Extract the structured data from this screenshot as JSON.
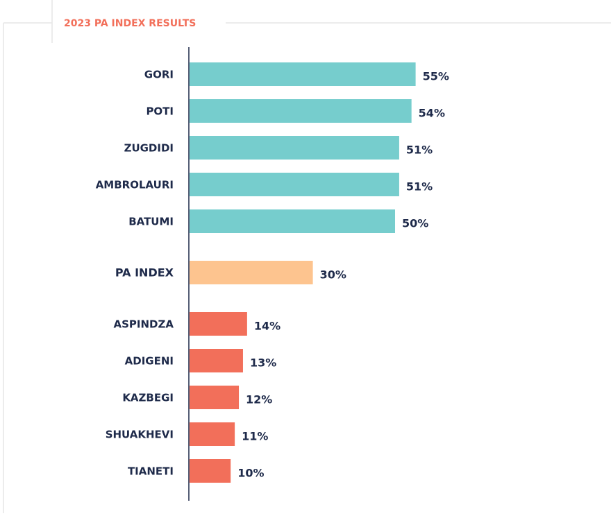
{
  "chart_data": {
    "type": "bar",
    "orientation": "horizontal",
    "title": "2023 PA INDEX RESULTS",
    "categories": [
      "GORI",
      "POTI",
      "ZUGDIDI",
      "AMBROLAURI",
      "BATUMI",
      "PA INDEX",
      "ASPINDZA",
      "ADIGENI",
      "KAZBEGI",
      "SHUAKHEVI",
      "TIANETI"
    ],
    "values": [
      55,
      54,
      51,
      51,
      50,
      30,
      14,
      13,
      12,
      11,
      10
    ],
    "value_labels": [
      "55%",
      "54%",
      "51%",
      "51%",
      "50%",
      "30%",
      "14%",
      "13%",
      "12%",
      "11%",
      "10%"
    ],
    "colors": [
      "#76cdcd",
      "#76cdcd",
      "#76cdcd",
      "#76cdcd",
      "#76cdcd",
      "#fdc48f",
      "#f26f5a",
      "#f26f5a",
      "#f26f5a",
      "#f26f5a",
      "#f26f5a"
    ]
  }
}
